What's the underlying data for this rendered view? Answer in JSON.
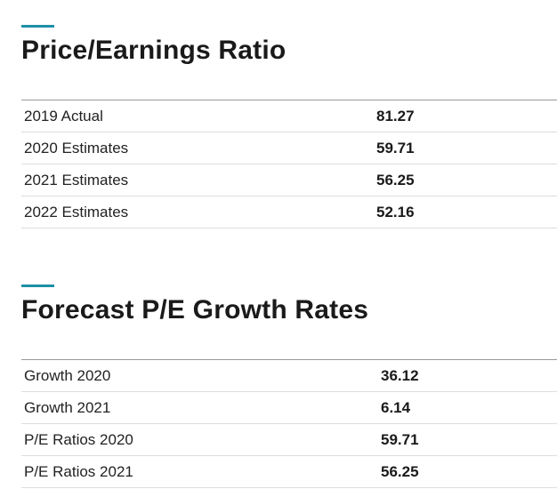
{
  "accent_color": "#1e8fa8",
  "pe_section": {
    "title": "Price/Earnings Ratio",
    "rows": [
      {
        "label": "2019 Actual",
        "value": "81.27"
      },
      {
        "label": "2020 Estimates",
        "value": "59.71"
      },
      {
        "label": "2021 Estimates",
        "value": "56.25"
      },
      {
        "label": "2022 Estimates",
        "value": "52.16"
      }
    ]
  },
  "growth_section": {
    "title": "Forecast P/E Growth Rates",
    "rows": [
      {
        "label": "Growth 2020",
        "value": "36.12"
      },
      {
        "label": "Growth 2021",
        "value": "6.14"
      },
      {
        "label": "P/E Ratios 2020",
        "value": "59.71"
      },
      {
        "label": "P/E Ratios 2021",
        "value": "56.25"
      }
    ]
  }
}
